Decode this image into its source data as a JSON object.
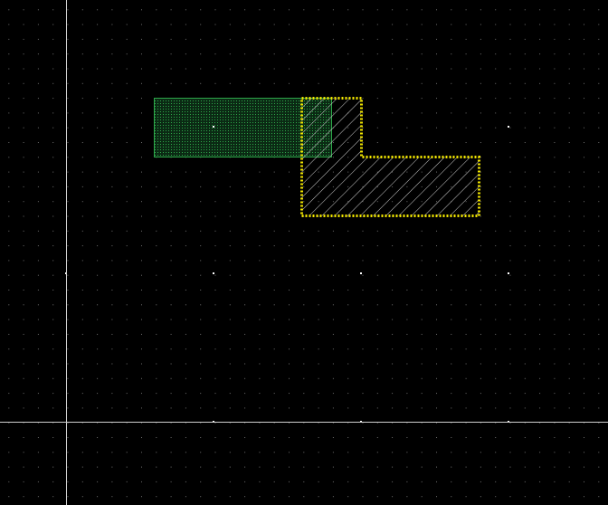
{
  "canvas": {
    "background": "#000000",
    "grid_dot_color": "#8a8a8a",
    "major_grid_dot_color": "#ffffff",
    "axis_color": "#d0d0d0"
  },
  "layers": [
    {
      "id": "green-layer",
      "kind": "rectangle",
      "stroke": "#2ea84a",
      "fill_pattern": "dense-dots",
      "fill_color": "#1f7a3a",
      "selected": false
    },
    {
      "id": "yellow-selected-polygon",
      "kind": "l-shaped-polygon",
      "stroke": "#f2e600",
      "stroke_style": "dotted-selection",
      "fill_pattern": "diagonal-hatch",
      "fill_color": "#cfcfcf",
      "selected": true
    }
  ],
  "icons": {
    "origin_marker": "crosshair-axes",
    "center_marker": "center-dot"
  }
}
